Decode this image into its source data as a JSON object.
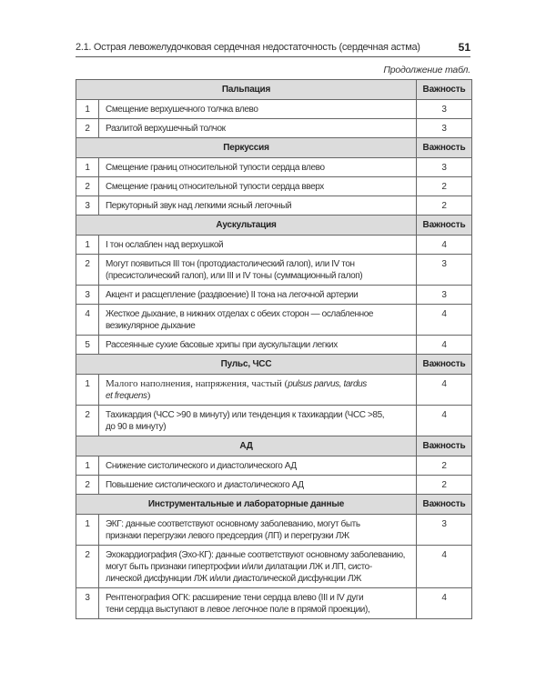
{
  "running_head": {
    "title": "2.1. Острая левожелудочковая сердечная недостаточность (сердечная астма)",
    "page_number": "51"
  },
  "continuation_label": "Продолжение табл.",
  "importance_header": "Важность",
  "sections": [
    {
      "title": "Пальпация",
      "rows": [
        {
          "n": "1",
          "lines": [
            "Смещение верхушечного толчка влево"
          ],
          "importance": "3"
        },
        {
          "n": "2",
          "lines": [
            "Разлитой верхушечный толчок"
          ],
          "importance": "3"
        }
      ]
    },
    {
      "title": "Перкуссия",
      "rows": [
        {
          "n": "1",
          "lines": [
            "Смещение границ относительной тупости сердца влево"
          ],
          "importance": "3"
        },
        {
          "n": "2",
          "lines": [
            "Смещение границ относительной тупости сердца вверх"
          ],
          "importance": "2"
        },
        {
          "n": "3",
          "lines": [
            "Перкуторный звук над легкими ясный легочный"
          ],
          "importance": "2"
        }
      ]
    },
    {
      "title": "Аускультация",
      "rows": [
        {
          "n": "1",
          "lines": [
            "I тон ослаблен над верхушкой"
          ],
          "importance": "4"
        },
        {
          "n": "2",
          "lines": [
            "Могут появиться III тон (протодиастолический галоп), или IV тон",
            "(пресистолический галоп), или III и IV тоны (суммационный галоп)"
          ],
          "importance": "3"
        },
        {
          "n": "3",
          "lines": [
            "Акцент и расщепление (раздвоение) II тона на легочной артерии"
          ],
          "importance": "3"
        },
        {
          "n": "4",
          "lines": [
            "Жесткое дыхание, в нижних отделах с обеих сторон —  ослабленное",
            "везикулярное дыхание"
          ],
          "importance": "4"
        },
        {
          "n": "5",
          "lines": [
            "Рассеянные сухие басовые хрипы при аускультации легких"
          ],
          "importance": "4"
        }
      ]
    },
    {
      "title": "Пульс, ЧСС",
      "rows": [
        {
          "n": "1",
          "lines": [],
          "pulse": {
            "plain": "Малого наполнения, напряжения, частый (",
            "latin1": "pulsus parvus, tardus",
            "latin2": "et frequens",
            "close": ")"
          },
          "importance": "4"
        },
        {
          "n": "2",
          "lines": [
            "Тахикардия (ЧСС >90 в минуту) или тенденция к тахикардии (ЧСС >85,",
            "до 90 в минуту)"
          ],
          "importance": "4"
        }
      ]
    },
    {
      "title": "АД",
      "rows": [
        {
          "n": "1",
          "lines": [
            "Снижение систолического и диастолического АД"
          ],
          "importance": "2"
        },
        {
          "n": "2",
          "lines": [
            "Повышение систолического и диастолического АД"
          ],
          "importance": "2"
        }
      ]
    },
    {
      "title": "Инструментальные и лабораторные данные",
      "rows": [
        {
          "n": "1",
          "lines": [
            "ЭКГ: данные соответствуют основному заболеванию, могут быть",
            "признаки перегрузки левого предсердия (ЛП) и перегрузки ЛЖ"
          ],
          "importance": "3"
        },
        {
          "n": "2",
          "lines": [
            "Эхокардиография (Эхо-КГ): данные соответствуют основному заболеванию,",
            "могут быть признаки гипертрофии и/или дилатации ЛЖ и ЛП, систо-",
            "лической дисфункции ЛЖ и/или диастолической дисфункции ЛЖ"
          ],
          "importance": "4"
        },
        {
          "n": "3",
          "lines": [
            "Рентгенография ОГК: расширение тени сердца влево (III и IV дуги",
            "тени сердца выступают в левое легочное поле в прямой проекции),"
          ],
          "importance": "4"
        }
      ]
    }
  ]
}
